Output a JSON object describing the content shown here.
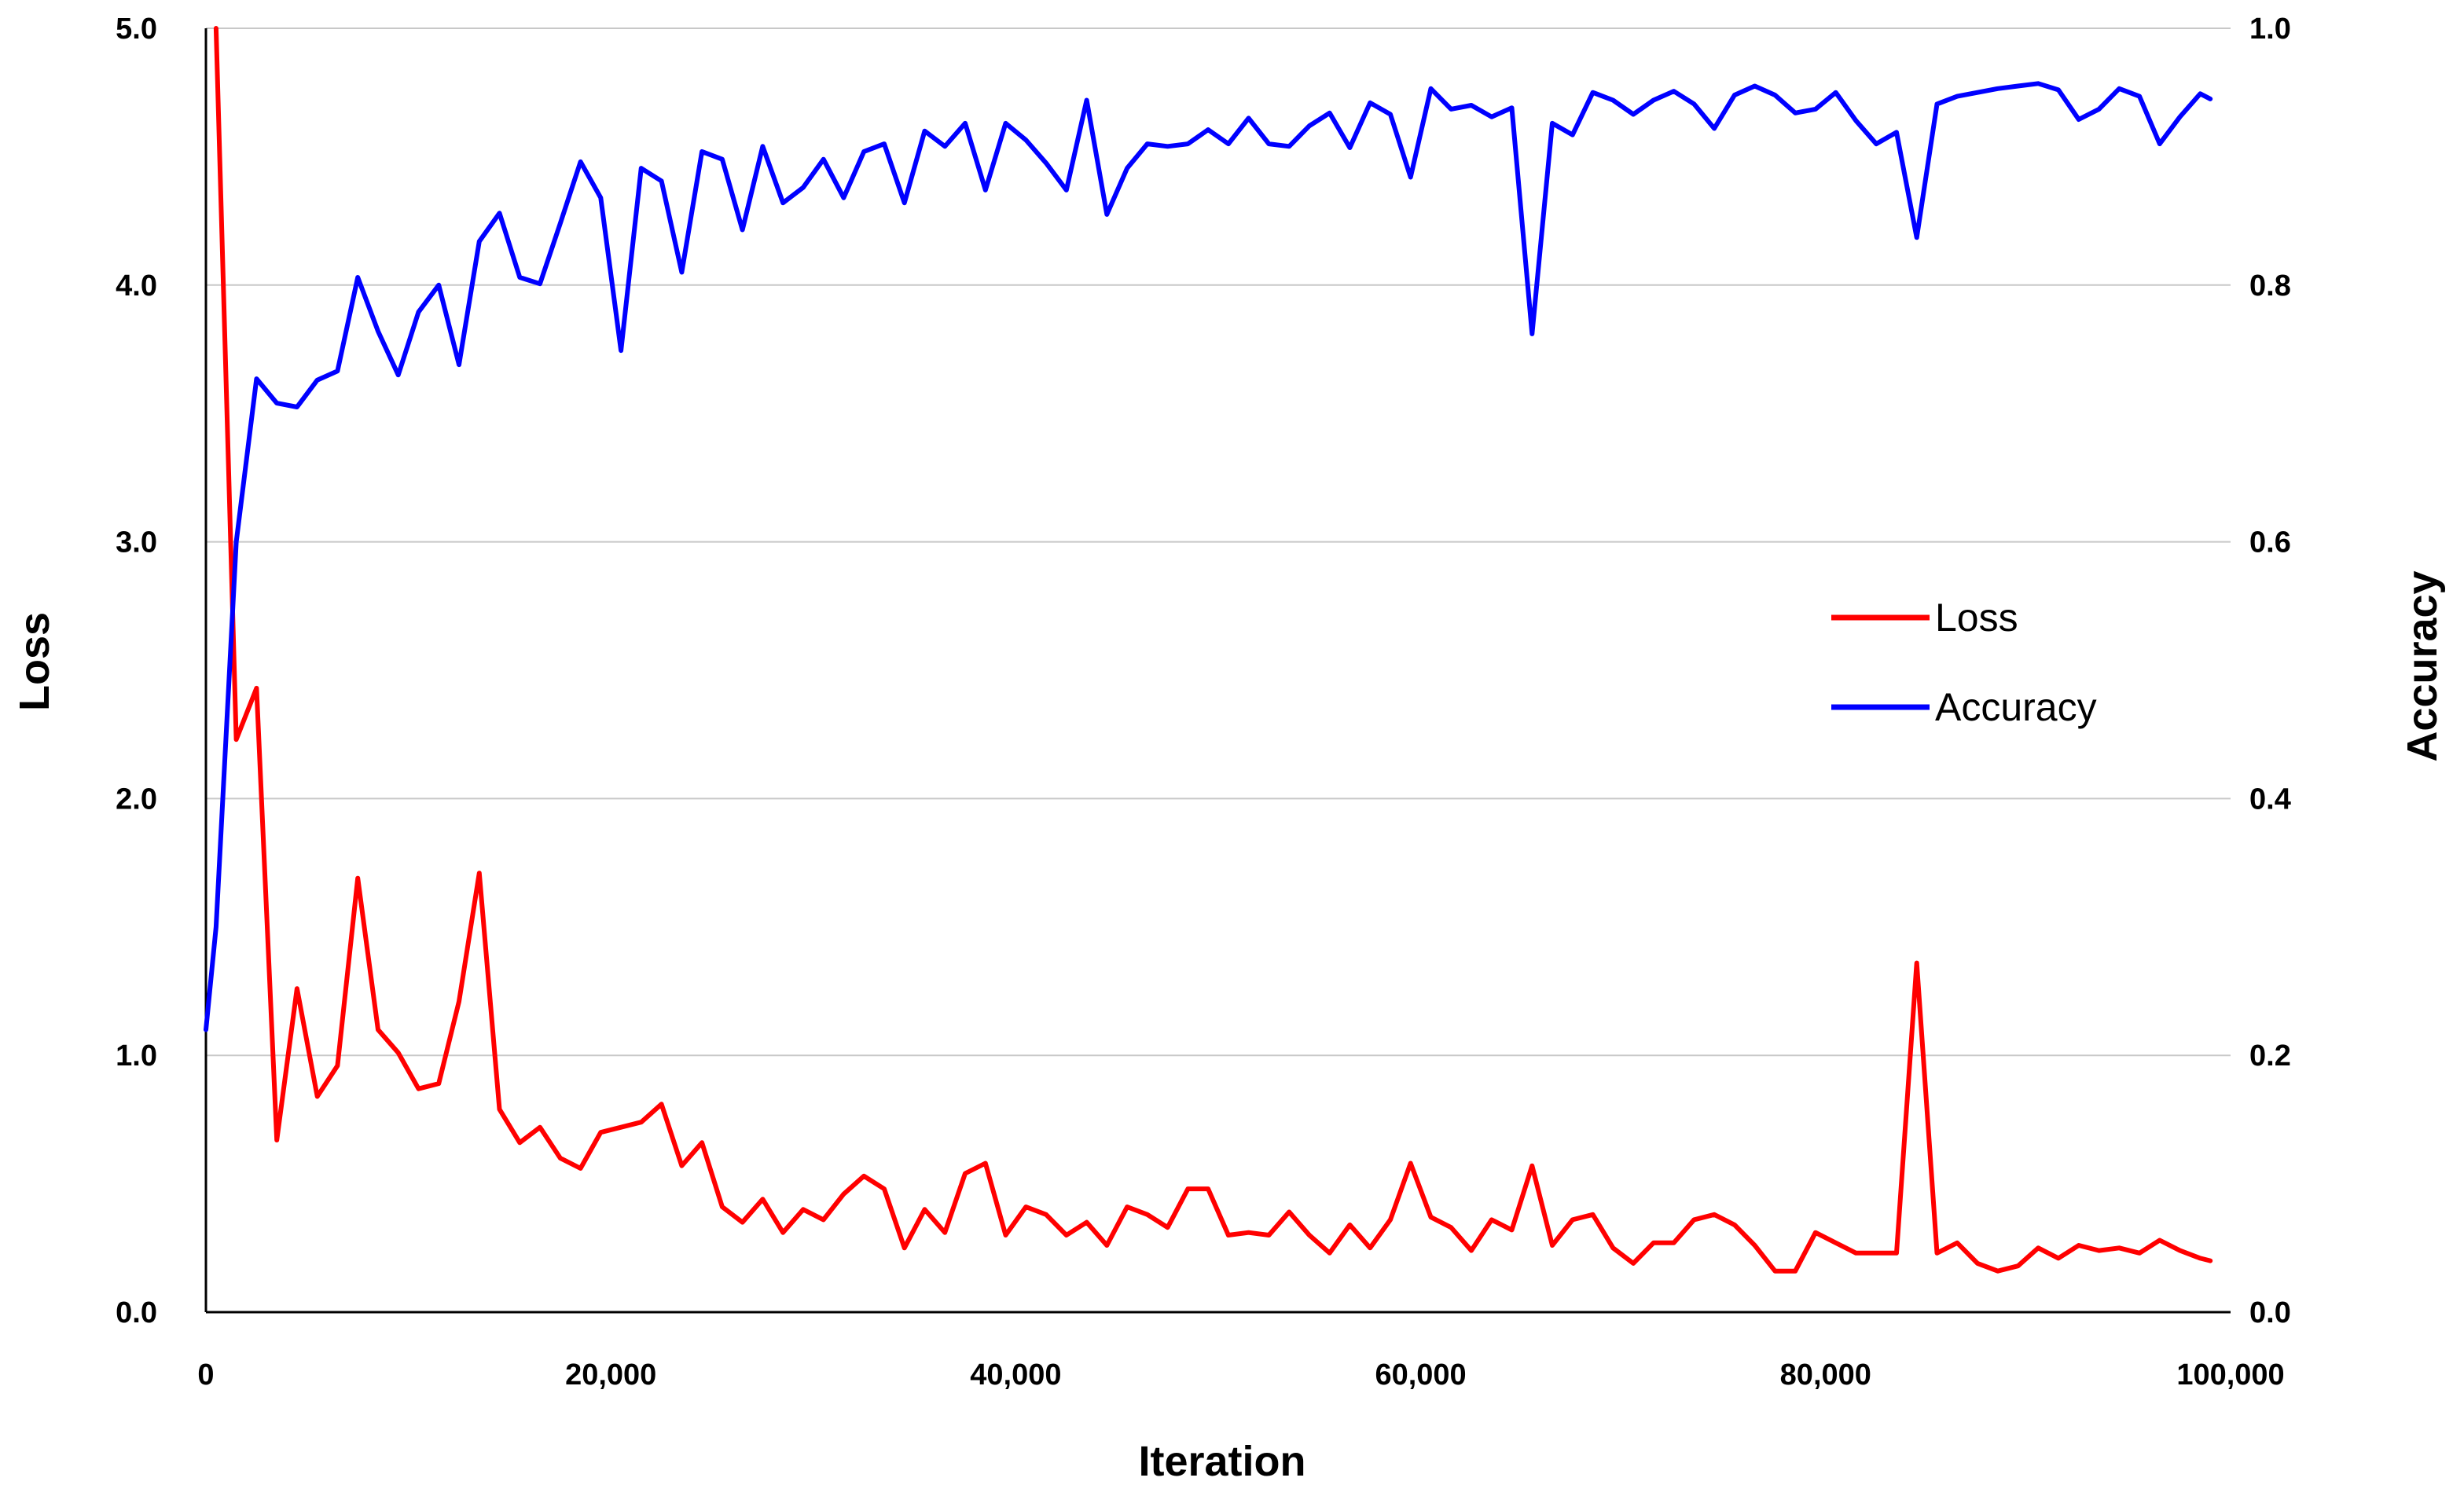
{
  "chart_data": {
    "type": "line",
    "xlabel": "Iteration",
    "ylabel_left": "Loss",
    "ylabel_right": "Accuracy",
    "xlim": [
      0,
      100000
    ],
    "ylim_left": [
      0.0,
      5.0
    ],
    "ylim_right": [
      0.0,
      1.0
    ],
    "x_ticks": [
      0,
      20000,
      40000,
      60000,
      80000,
      100000
    ],
    "x_tick_labels": [
      "0",
      "20,000",
      "40,000",
      "60,000",
      "80,000",
      "100,000"
    ],
    "y_left_ticks": [
      0.0,
      1.0,
      2.0,
      3.0,
      4.0,
      5.0
    ],
    "y_left_tick_labels": [
      "0.0",
      "1.0",
      "2.0",
      "3.0",
      "4.0",
      "5.0"
    ],
    "y_right_ticks": [
      0.0,
      0.2,
      0.4,
      0.6,
      0.8,
      1.0
    ],
    "y_right_tick_labels": [
      "0.0",
      "0.2",
      "0.4",
      "0.6",
      "0.8",
      "1.0"
    ],
    "grid": "horizontal",
    "legend_position": "right-middle",
    "x": [
      0,
      500,
      1500,
      2500,
      3500,
      4500,
      5500,
      6500,
      7500,
      8500,
      9500,
      10500,
      11500,
      12500,
      13500,
      14500,
      15500,
      16500,
      17500,
      18500,
      19500,
      20500,
      21500,
      22500,
      23500,
      24500,
      25500,
      26500,
      27500,
      28500,
      29500,
      30500,
      31500,
      32500,
      33500,
      34500,
      35500,
      36500,
      37500,
      38500,
      39500,
      40500,
      41500,
      42500,
      43500,
      44500,
      45500,
      46500,
      47500,
      48500,
      49500,
      50500,
      51500,
      52500,
      53500,
      54500,
      55500,
      56500,
      57500,
      58500,
      59500,
      60500,
      61500,
      62500,
      63500,
      64500,
      65500,
      66500,
      67500,
      68500,
      69500,
      70500,
      71500,
      72500,
      73500,
      74500,
      75500,
      76500,
      77500,
      78500,
      79500,
      80500,
      81500,
      82500,
      83500,
      84500,
      85500,
      86500,
      87500,
      88500,
      89500,
      90500,
      91500,
      92500,
      93500,
      94500,
      95500,
      96500,
      97500,
      98500,
      99000
    ],
    "series": [
      {
        "name": "Loss",
        "axis": "left",
        "color": "#ff0000",
        "values": [
          null,
          5.0,
          2.23,
          2.43,
          0.67,
          1.26,
          0.84,
          0.96,
          1.69,
          1.1,
          1.01,
          0.87,
          0.89,
          1.21,
          1.71,
          0.79,
          0.66,
          0.72,
          0.6,
          0.56,
          0.7,
          0.72,
          0.74,
          0.81,
          0.57,
          0.66,
          0.41,
          0.35,
          0.44,
          0.31,
          0.4,
          0.36,
          0.46,
          0.53,
          0.48,
          0.25,
          0.4,
          0.31,
          0.54,
          0.58,
          0.3,
          0.41,
          0.38,
          0.3,
          0.35,
          0.26,
          0.41,
          0.38,
          0.33,
          0.48,
          0.48,
          0.3,
          0.31,
          0.3,
          0.39,
          0.3,
          0.23,
          0.34,
          0.25,
          0.36,
          0.58,
          0.37,
          0.33,
          0.24,
          0.36,
          0.32,
          0.57,
          0.26,
          0.36,
          0.38,
          0.25,
          0.19,
          0.27,
          0.27,
          0.36,
          0.38,
          0.34,
          0.26,
          0.16,
          0.16,
          0.31,
          0.27,
          0.23,
          0.23,
          0.23,
          1.36,
          0.23,
          0.27,
          0.19,
          0.16,
          0.18,
          0.25,
          0.21,
          0.26,
          0.24,
          0.25,
          0.23,
          0.28,
          0.24,
          0.21,
          0.2
        ]
      },
      {
        "name": "Accuracy",
        "axis": "right",
        "color": "#0000ff",
        "values": [
          0.22,
          0.3,
          0.6,
          0.727,
          0.708,
          0.705,
          0.726,
          0.733,
          0.806,
          0.764,
          0.73,
          0.779,
          0.8,
          0.738,
          0.834,
          0.856,
          0.806,
          0.801,
          0.848,
          0.896,
          0.868,
          0.749,
          0.891,
          0.881,
          0.81,
          0.904,
          0.898,
          0.843,
          0.908,
          0.864,
          0.876,
          0.898,
          0.868,
          0.904,
          0.91,
          0.864,
          0.92,
          0.908,
          0.926,
          0.874,
          0.926,
          0.913,
          0.895,
          0.874,
          0.944,
          0.855,
          0.891,
          0.91,
          0.908,
          0.91,
          0.921,
          0.91,
          0.93,
          0.91,
          0.908,
          0.924,
          0.934,
          0.907,
          0.942,
          0.933,
          0.884,
          0.953,
          0.937,
          0.94,
          0.931,
          0.938,
          0.762,
          0.926,
          0.917,
          0.95,
          0.944,
          0.933,
          0.944,
          0.951,
          0.941,
          0.922,
          0.948,
          0.955,
          0.948,
          0.934,
          0.937,
          0.95,
          0.928,
          0.91,
          0.919,
          0.837,
          0.941,
          0.947,
          0.95,
          0.953,
          0.955,
          0.957,
          0.952,
          0.929,
          0.937,
          0.953,
          0.947,
          0.91,
          0.931,
          0.949,
          0.945
        ]
      }
    ]
  }
}
